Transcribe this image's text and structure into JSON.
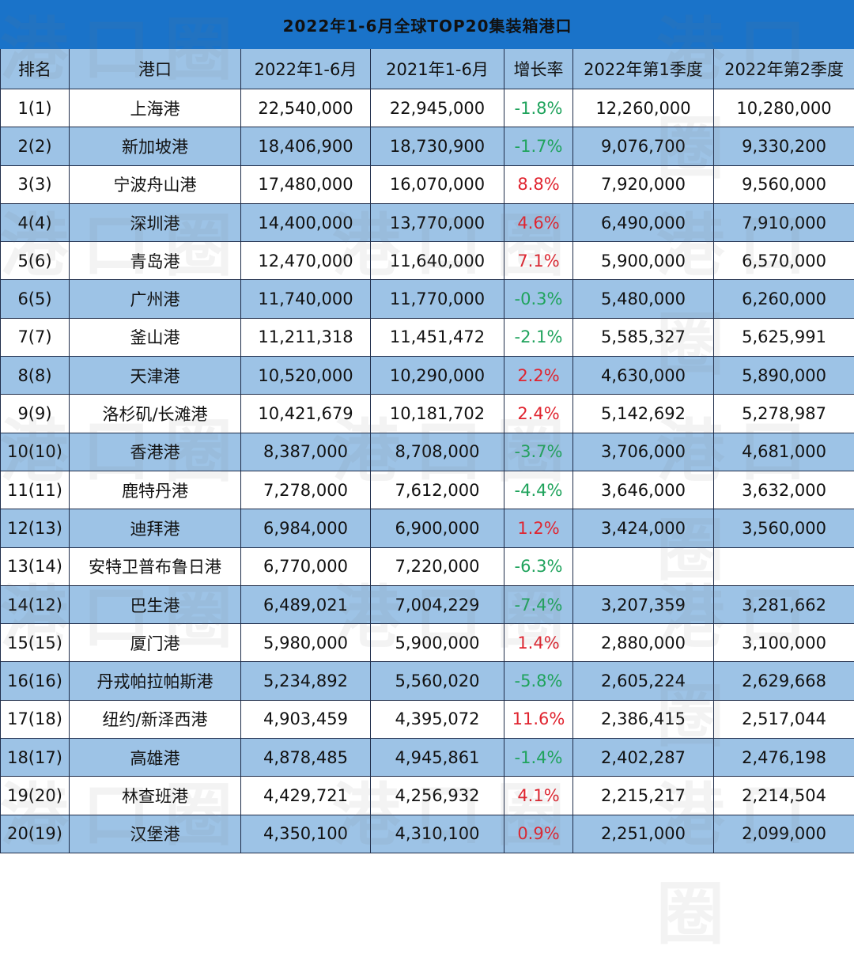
{
  "title": "2022年1-6月全球TOP20集装箱港口",
  "watermark": "港口圈",
  "colors": {
    "title_bg": "#1a73c9",
    "header_bg": "#9dc3e6",
    "alt_row_bg": "#9dc3e6",
    "positive": "#e0242f",
    "negative": "#1fa35c"
  },
  "columns": [
    "排名",
    "港口",
    "2022年1-6月",
    "2021年1-6月",
    "增长率",
    "2022年第1季度",
    "2022年第2季度"
  ],
  "rows": [
    {
      "rank": "1(1)",
      "port": "上海港",
      "h1_2022": "22,540,000",
      "h1_2021": "22,945,000",
      "growth": "-1.8%",
      "trend": "neg",
      "q1_2022": "12,260,000",
      "q2_2022": "10,280,000"
    },
    {
      "rank": "2(2)",
      "port": "新加坡港",
      "h1_2022": "18,406,900",
      "h1_2021": "18,730,900",
      "growth": "-1.7%",
      "trend": "neg",
      "q1_2022": "9,076,700",
      "q2_2022": "9,330,200"
    },
    {
      "rank": "3(3)",
      "port": "宁波舟山港",
      "h1_2022": "17,480,000",
      "h1_2021": "16,070,000",
      "growth": "8.8%",
      "trend": "pos",
      "q1_2022": "7,920,000",
      "q2_2022": "9,560,000"
    },
    {
      "rank": "4(4)",
      "port": "深圳港",
      "h1_2022": "14,400,000",
      "h1_2021": "13,770,000",
      "growth": "4.6%",
      "trend": "pos",
      "q1_2022": "6,490,000",
      "q2_2022": "7,910,000"
    },
    {
      "rank": "5(6)",
      "port": "青岛港",
      "h1_2022": "12,470,000",
      "h1_2021": "11,640,000",
      "growth": "7.1%",
      "trend": "pos",
      "q1_2022": "5,900,000",
      "q2_2022": "6,570,000"
    },
    {
      "rank": "6(5)",
      "port": "广州港",
      "h1_2022": "11,740,000",
      "h1_2021": "11,770,000",
      "growth": "-0.3%",
      "trend": "neg",
      "q1_2022": "5,480,000",
      "q2_2022": "6,260,000"
    },
    {
      "rank": "7(7)",
      "port": "釜山港",
      "h1_2022": "11,211,318",
      "h1_2021": "11,451,472",
      "growth": "-2.1%",
      "trend": "neg",
      "q1_2022": "5,585,327",
      "q2_2022": "5,625,991"
    },
    {
      "rank": "8(8)",
      "port": "天津港",
      "h1_2022": "10,520,000",
      "h1_2021": "10,290,000",
      "growth": "2.2%",
      "trend": "pos",
      "q1_2022": "4,630,000",
      "q2_2022": "5,890,000"
    },
    {
      "rank": "9(9)",
      "port": "洛杉矶/长滩港",
      "h1_2022": "10,421,679",
      "h1_2021": "10,181,702",
      "growth": "2.4%",
      "trend": "pos",
      "q1_2022": "5,142,692",
      "q2_2022": "5,278,987"
    },
    {
      "rank": "10(10)",
      "port": "香港港",
      "h1_2022": "8,387,000",
      "h1_2021": "8,708,000",
      "growth": "-3.7%",
      "trend": "neg",
      "q1_2022": "3,706,000",
      "q2_2022": "4,681,000"
    },
    {
      "rank": "11(11)",
      "port": "鹿特丹港",
      "h1_2022": "7,278,000",
      "h1_2021": "7,612,000",
      "growth": "-4.4%",
      "trend": "neg",
      "q1_2022": "3,646,000",
      "q2_2022": "3,632,000"
    },
    {
      "rank": "12(13)",
      "port": "迪拜港",
      "h1_2022": "6,984,000",
      "h1_2021": "6,900,000",
      "growth": "1.2%",
      "trend": "pos",
      "q1_2022": "3,424,000",
      "q2_2022": "3,560,000"
    },
    {
      "rank": "13(14)",
      "port": "安特卫普布鲁日港",
      "h1_2022": "6,770,000",
      "h1_2021": "7,220,000",
      "growth": "-6.3%",
      "trend": "neg",
      "q1_2022": "",
      "q2_2022": ""
    },
    {
      "rank": "14(12)",
      "port": "巴生港",
      "h1_2022": "6,489,021",
      "h1_2021": "7,004,229",
      "growth": "-7.4%",
      "trend": "neg",
      "q1_2022": "3,207,359",
      "q2_2022": "3,281,662"
    },
    {
      "rank": "15(15)",
      "port": "厦门港",
      "h1_2022": "5,980,000",
      "h1_2021": "5,900,000",
      "growth": "1.4%",
      "trend": "pos",
      "q1_2022": "2,880,000",
      "q2_2022": "3,100,000"
    },
    {
      "rank": "16(16)",
      "port": "丹戎帕拉帕斯港",
      "h1_2022": "5,234,892",
      "h1_2021": "5,560,020",
      "growth": "-5.8%",
      "trend": "neg",
      "q1_2022": "2,605,224",
      "q2_2022": "2,629,668"
    },
    {
      "rank": "17(18)",
      "port": "纽约/新泽西港",
      "h1_2022": "4,903,459",
      "h1_2021": "4,395,072",
      "growth": "11.6%",
      "trend": "pos",
      "q1_2022": "2,386,415",
      "q2_2022": "2,517,044"
    },
    {
      "rank": "18(17)",
      "port": "高雄港",
      "h1_2022": "4,878,485",
      "h1_2021": "4,945,861",
      "growth": "-1.4%",
      "trend": "neg",
      "q1_2022": "2,402,287",
      "q2_2022": "2,476,198"
    },
    {
      "rank": "19(20)",
      "port": "林查班港",
      "h1_2022": "4,429,721",
      "h1_2021": "4,256,932",
      "growth": "4.1%",
      "trend": "pos",
      "q1_2022": "2,215,217",
      "q2_2022": "2,214,504"
    },
    {
      "rank": "20(19)",
      "port": "汉堡港",
      "h1_2022": "4,350,100",
      "h1_2021": "4,310,100",
      "growth": "0.9%",
      "trend": "pos",
      "q1_2022": "2,251,000",
      "q2_2022": "2,099,000"
    }
  ]
}
